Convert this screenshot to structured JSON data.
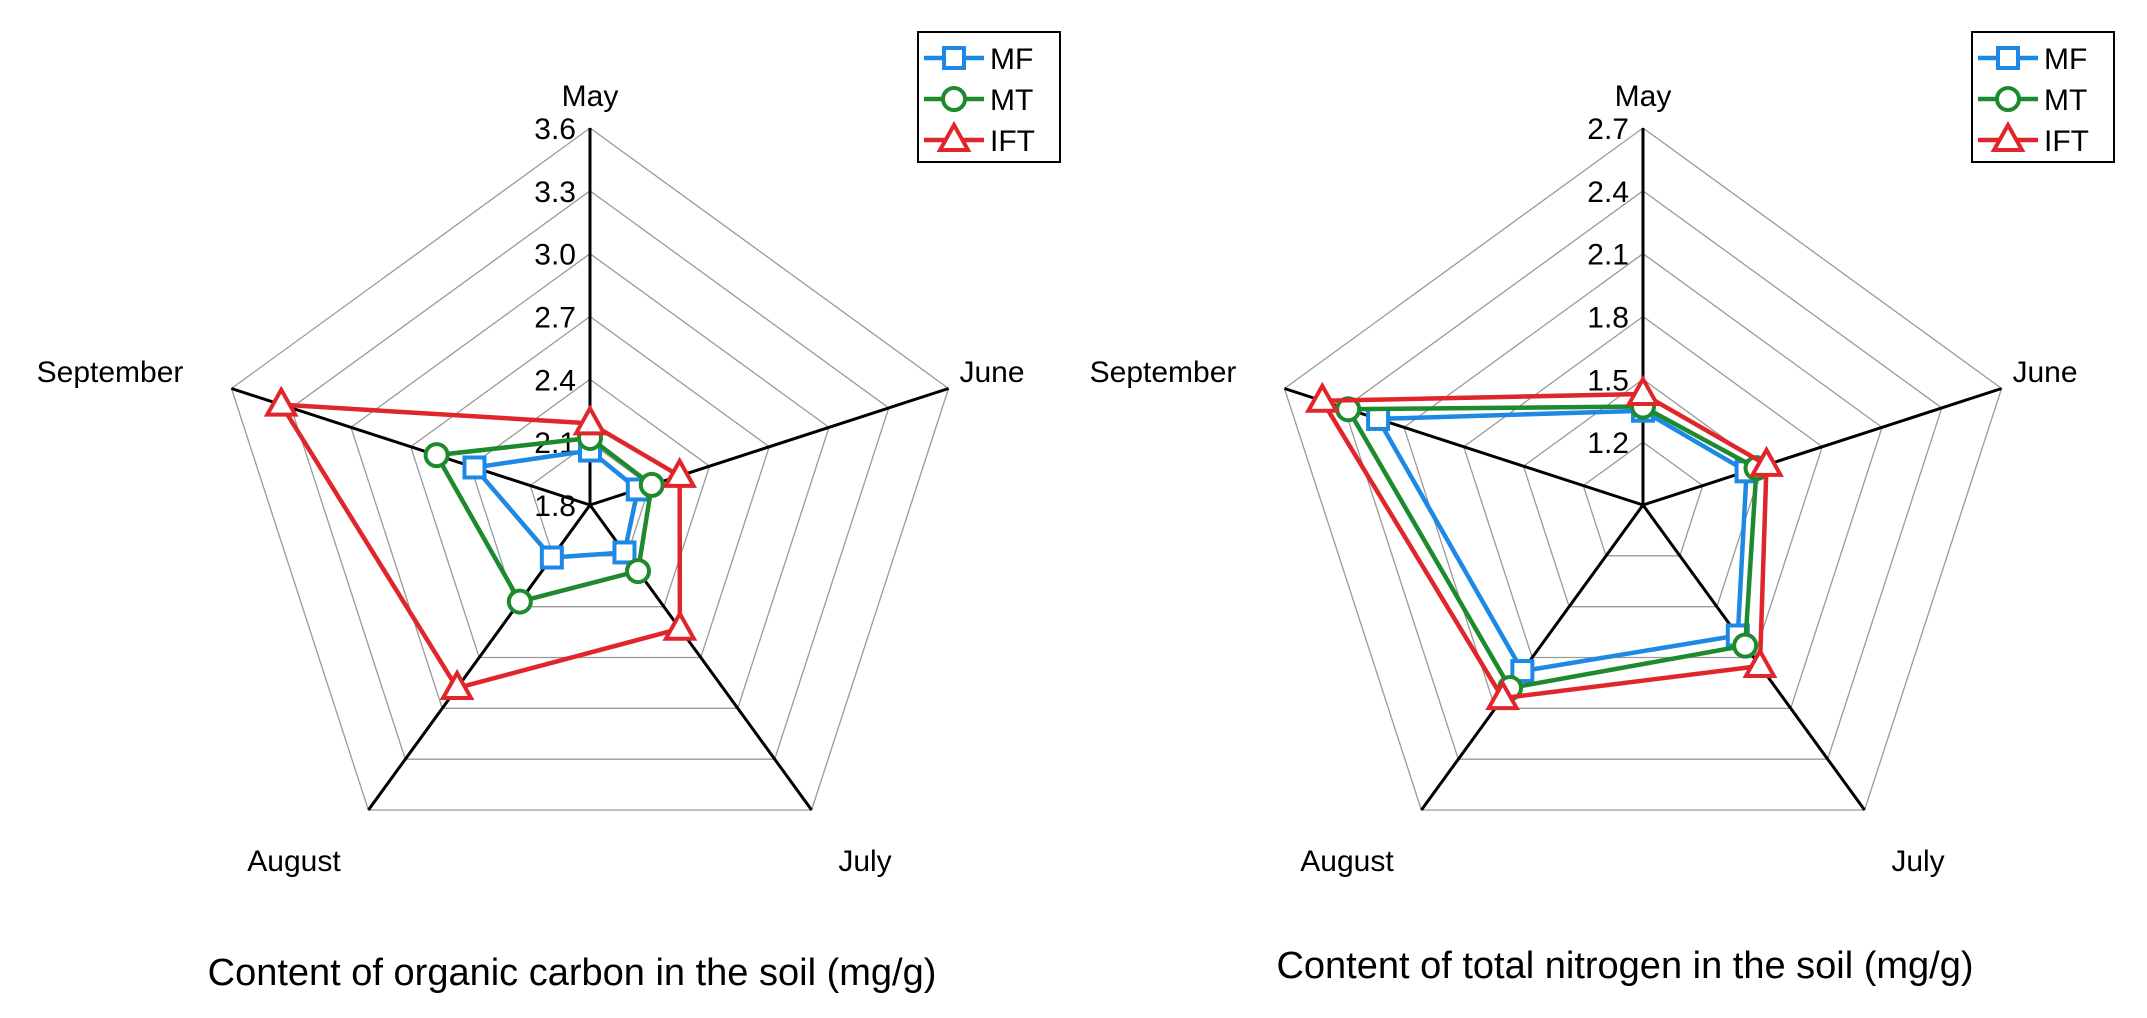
{
  "colors": {
    "MF": "#1e88e5",
    "MT": "#1e8a2e",
    "IFT": "#e0262a",
    "grid": "#9a9a9a",
    "axis": "#000000"
  },
  "chart_data": [
    {
      "type": "radar",
      "title": "Content of organic carbon in the soil (mg/g)",
      "categories": [
        "May",
        "June",
        "July",
        "August",
        "September"
      ],
      "rlim": [
        1.8,
        3.6
      ],
      "ticks": [
        "1.8",
        "2.1",
        "2.4",
        "2.7",
        "3.0",
        "3.3",
        "3.6"
      ],
      "legend": "top-right",
      "series": [
        {
          "name": "MF",
          "marker": "square",
          "values": [
            2.06,
            2.04,
            2.08,
            2.11,
            2.38
          ]
        },
        {
          "name": "MT",
          "marker": "circle",
          "values": [
            2.12,
            2.11,
            2.19,
            2.37,
            2.57
          ]
        },
        {
          "name": "IFT",
          "marker": "triangle",
          "values": [
            2.19,
            2.25,
            2.53,
            2.88,
            3.35
          ]
        }
      ]
    },
    {
      "type": "radar",
      "title": "Content of total nitrogen in the soil (mg/g)",
      "categories": [
        "May",
        "June",
        "July",
        "August",
        "September"
      ],
      "rlim": [
        0.9,
        2.7
      ],
      "ticks": [
        "1.2",
        "1.5",
        "1.8",
        "2.1",
        "2.4",
        "2.7"
      ],
      "legend": "top-right",
      "series": [
        {
          "name": "MF",
          "marker": "square",
          "values": [
            1.35,
            1.42,
            1.67,
            1.88,
            2.23
          ]
        },
        {
          "name": "MT",
          "marker": "circle",
          "values": [
            1.37,
            1.47,
            1.73,
            1.98,
            2.38
          ]
        },
        {
          "name": "IFT",
          "marker": "triangle",
          "values": [
            1.43,
            1.52,
            1.85,
            2.04,
            2.51
          ]
        }
      ]
    }
  ]
}
